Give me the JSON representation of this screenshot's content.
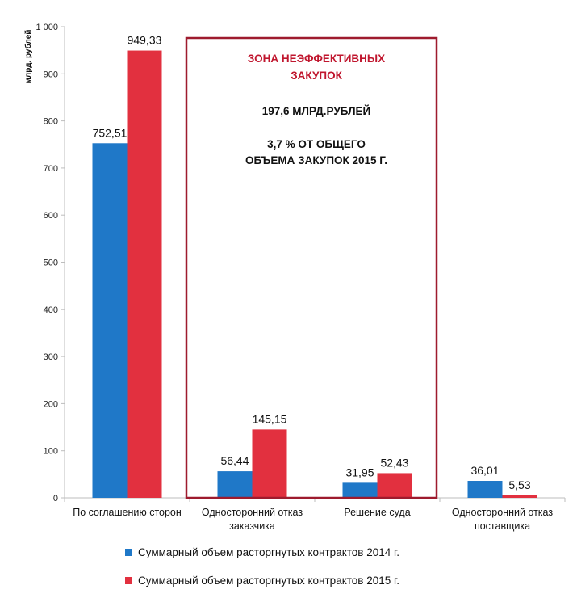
{
  "chart_data": {
    "type": "bar",
    "ylabel": "млрд. рублей",
    "ylim": [
      0,
      1000
    ],
    "yticks": [
      "0",
      "100",
      "200",
      "300",
      "400",
      "500",
      "600",
      "700",
      "800",
      "900",
      "1 000"
    ],
    "categories": [
      [
        "По соглашению сторон"
      ],
      [
        "Односторонний отказ",
        "заказчика"
      ],
      [
        "Решение суда"
      ],
      [
        "Односторонний отказ",
        "поставщика"
      ]
    ],
    "series": [
      {
        "name": "Суммарный объем расторгнутых контрактов 2014 г.",
        "color": "#1f78c8",
        "values": [
          752.51,
          56.44,
          31.95,
          36.01
        ],
        "labels": [
          "752,51",
          "56,44",
          "31,95",
          "36,01"
        ]
      },
      {
        "name": "Суммарный объем расторгнутых контрактов 2015 г.",
        "color": "#e2303f",
        "values": [
          949.33,
          145.15,
          52.43,
          5.53
        ],
        "labels": [
          "949,33",
          "145,15",
          "52,43",
          "5,53"
        ]
      }
    ],
    "legend_position": "bottom",
    "grid": false,
    "annotation": {
      "box_color": "#9e1b2e",
      "spans_categories": [
        1,
        2
      ],
      "title_lines": [
        "ЗОНА НЕЭФФЕКТИВНЫХ",
        "ЗАКУПОК"
      ],
      "amount": "197,6 МЛРД.РУБЛЕЙ",
      "share_lines": [
        "3,7 % ОТ ОБЩЕГО",
        "ОБЪЕМА ЗАКУПОК 2015 Г."
      ]
    }
  }
}
